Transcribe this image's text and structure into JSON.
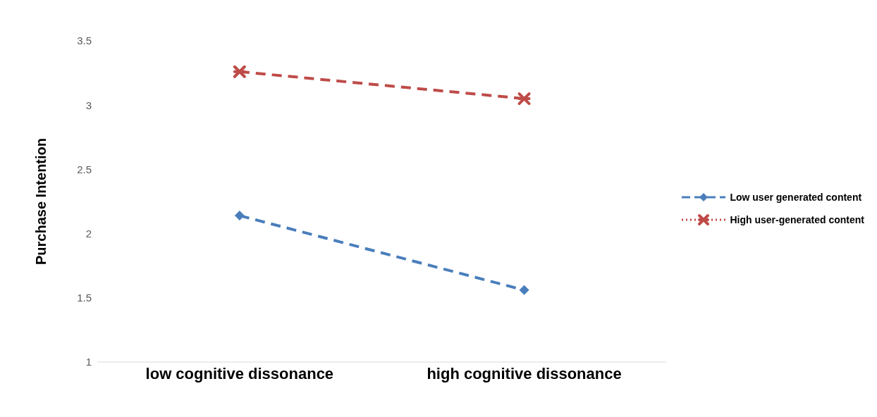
{
  "chart_data": {
    "type": "line",
    "ylabel": "Purchase Intention",
    "categories": [
      "low cognitive dissonance",
      "high cognitive dissonance"
    ],
    "series": [
      {
        "name": "Low user generated content",
        "color": "#4a7ebb",
        "values": [
          2.14,
          1.56
        ],
        "marker": "diamond"
      },
      {
        "name": "High user-generated content",
        "color": "#be4b48",
        "values": [
          3.26,
          3.05
        ],
        "marker": "cross"
      }
    ],
    "ylim": [
      1,
      3.5
    ],
    "yticks": [
      1,
      1.5,
      2,
      2.5,
      3,
      3.5
    ],
    "grid": false,
    "legend": "right",
    "line_style": "dashed"
  }
}
